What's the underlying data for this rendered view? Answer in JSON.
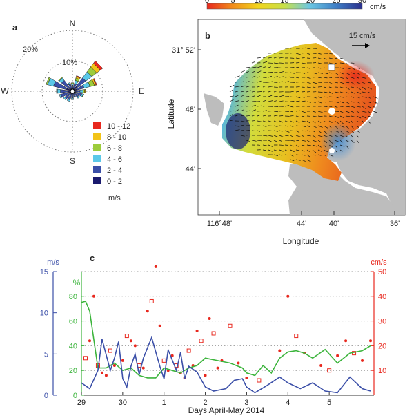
{
  "panels": {
    "a": {
      "label": "a",
      "compass": {
        "n": "N",
        "e": "E",
        "s": "S",
        "w": "W"
      },
      "ring_labels": [
        "10%",
        "20%"
      ],
      "legend_unit": "m/s",
      "colors": [
        "#1a1a6e",
        "#3a4fa8",
        "#5bc8e8",
        "#9ccc3c",
        "#f2c318",
        "#e8281e"
      ]
    },
    "b": {
      "label": "b",
      "colorbar_unit": "cm/s",
      "colorbar_ticks": [
        "0",
        "5",
        "10",
        "15",
        "20",
        "25",
        "30"
      ],
      "colorbar_stops": [
        "#e8281e",
        "#f28a1a",
        "#f2d51c",
        "#c7e04a",
        "#6cc7e3",
        "#3e7fc7",
        "#2a2f8c"
      ],
      "scale_label": "15 cm/s",
      "xlabel": "Longitude",
      "ylabel": "Latitude",
      "xticks": [
        "116°48'",
        "44'",
        "40'",
        "36'"
      ],
      "yticks": [
        "31° 52'",
        "48'",
        "44'"
      ]
    },
    "c": {
      "label": "c",
      "xlabel": "Days April-May 2014",
      "left_unit_speed": "m/s",
      "left_unit_pct": "%",
      "right_unit": "cm/s",
      "colors": {
        "blue": "#3b4fa8",
        "green": "#3cb43c",
        "red": "#e8281e"
      }
    }
  },
  "chart_data": [
    {
      "type": "rose",
      "title": "",
      "directions_deg": [
        0,
        22.5,
        45,
        67.5,
        90,
        112.5,
        135,
        157.5,
        180,
        202.5,
        225,
        247.5,
        270,
        292.5,
        315,
        337.5
      ],
      "legend": [
        "10 - 12",
        "8 - 10",
        "6 - 8",
        "4 - 6",
        "2 - 4",
        "0 - 2"
      ],
      "series": [
        {
          "name": "0 - 2",
          "values": [
            1.0,
            1.2,
            2.0,
            1.5,
            1.0,
            1.2,
            1.0,
            0.8,
            0.8,
            1.0,
            1.2,
            1.5,
            1.5,
            2.0,
            1.5,
            1.0
          ]
        },
        {
          "name": "2 - 4",
          "values": [
            1.0,
            1.5,
            3.5,
            2.5,
            1.5,
            2.0,
            1.5,
            1.0,
            1.5,
            2.0,
            2.0,
            2.5,
            2.5,
            4.5,
            3.0,
            1.5
          ]
        },
        {
          "name": "4 - 6",
          "values": [
            0.5,
            1.0,
            2.5,
            2.0,
            1.0,
            0.5,
            0.5,
            0.3,
            0.5,
            0.5,
            0.5,
            0.5,
            1.0,
            2.0,
            1.0,
            0.5
          ]
        },
        {
          "name": "6 - 8",
          "values": [
            0.3,
            0.8,
            2.0,
            1.5,
            0.5,
            0.2,
            0,
            0,
            0,
            0,
            0,
            0,
            0.3,
            0.5,
            0.3,
            0
          ]
        },
        {
          "name": "8 - 10",
          "values": [
            0,
            0.5,
            1.5,
            0.5,
            0.3,
            0,
            0,
            0,
            0,
            0,
            0,
            0,
            0,
            0,
            0,
            0
          ]
        },
        {
          "name": "10 - 12",
          "values": [
            0,
            0.3,
            1.0,
            0.3,
            0,
            0,
            0,
            0,
            0,
            0,
            0,
            0,
            0,
            0,
            0,
            0
          ]
        }
      ],
      "rings_percent": [
        10,
        20
      ]
    },
    {
      "type": "map",
      "title": "",
      "colorbar_range": [
        0,
        30
      ],
      "xticks": [
        "116°48'",
        "44'",
        "40'",
        "36'"
      ],
      "yticks": [
        "31° 52'",
        "48'",
        "44'"
      ]
    },
    {
      "type": "line",
      "title": "",
      "xlabel": "Days April-May 2014",
      "xticks": [
        "29",
        "30",
        "1",
        "2",
        "3",
        "4",
        "5"
      ],
      "xlim": [
        29,
        36
      ],
      "axes": {
        "left_speed": {
          "unit": "m/s",
          "ticks": [
            0,
            5,
            10,
            15
          ],
          "ylim": [
            0,
            15
          ]
        },
        "left_pct": {
          "unit": "%",
          "ticks": [
            0,
            20,
            40,
            60,
            80
          ],
          "ylim": [
            0,
            100
          ]
        },
        "right": {
          "unit": "cm/s",
          "ticks": [
            10,
            20,
            30,
            40,
            50
          ],
          "ylim": [
            0,
            50
          ]
        }
      },
      "series": [
        {
          "axis": "left_speed",
          "x": [
            29.0,
            29.2,
            29.4,
            29.5,
            29.7,
            29.8,
            29.9,
            30.0,
            30.1,
            30.2,
            30.3,
            30.4,
            30.5,
            30.7,
            30.9,
            31.0,
            31.1,
            31.3,
            31.4,
            31.5,
            31.6,
            31.8,
            32.0,
            32.2,
            32.5,
            32.7,
            32.9,
            33.0,
            33.2,
            33.5,
            33.8,
            34.0,
            34.3,
            34.6,
            34.9,
            35.2,
            35.5,
            35.8,
            36.0
          ],
          "y": [
            1.5,
            0.8,
            3.0,
            6.8,
            3.0,
            4.5,
            6.5,
            2.0,
            1.0,
            3.5,
            5.0,
            2.5,
            4.5,
            7.0,
            3.5,
            2.0,
            5.5,
            3.0,
            5.2,
            2.0,
            3.5,
            2.8,
            1.0,
            0.5,
            0.8,
            1.8,
            2.0,
            1.0,
            0.3,
            1.2,
            2.2,
            1.5,
            0.8,
            1.5,
            0.5,
            0.3,
            2.2,
            0.8,
            0.5
          ]
        },
        {
          "axis": "left_pct",
          "x": [
            29.0,
            29.1,
            29.2,
            29.4,
            29.6,
            29.8,
            30.0,
            30.2,
            30.4,
            30.6,
            30.8,
            31.0,
            31.2,
            31.4,
            31.6,
            31.8,
            32.0,
            32.3,
            32.6,
            32.9,
            33.0,
            33.2,
            33.4,
            33.6,
            33.8,
            34.0,
            34.2,
            34.4,
            34.6,
            34.9,
            35.2,
            35.5,
            35.8,
            36.0
          ],
          "y": [
            75,
            76,
            68,
            22,
            22,
            26,
            20,
            22,
            16,
            14,
            14,
            22,
            20,
            18,
            22,
            24,
            30,
            28,
            26,
            22,
            18,
            16,
            24,
            18,
            30,
            35,
            36,
            34,
            30,
            37,
            26,
            34,
            36,
            40
          ]
        }
      ],
      "scatter": {
        "axis": "right",
        "points": [
          [
            29.1,
            15
          ],
          [
            29.2,
            22
          ],
          [
            29.3,
            40
          ],
          [
            29.4,
            12
          ],
          [
            29.5,
            9
          ],
          [
            29.6,
            8
          ],
          [
            29.7,
            18
          ],
          [
            29.8,
            12
          ],
          [
            30.0,
            14
          ],
          [
            30.1,
            24
          ],
          [
            30.2,
            22
          ],
          [
            30.3,
            20
          ],
          [
            30.4,
            12
          ],
          [
            30.5,
            11
          ],
          [
            30.6,
            34
          ],
          [
            30.7,
            38
          ],
          [
            30.8,
            52
          ],
          [
            30.9,
            28
          ],
          [
            31.0,
            14
          ],
          [
            31.1,
            10
          ],
          [
            31.2,
            16
          ],
          [
            31.3,
            12
          ],
          [
            31.4,
            9
          ],
          [
            31.5,
            7
          ],
          [
            31.6,
            18
          ],
          [
            31.7,
            12
          ],
          [
            31.8,
            26
          ],
          [
            31.9,
            22
          ],
          [
            32.0,
            8
          ],
          [
            32.1,
            31
          ],
          [
            32.2,
            25
          ],
          [
            32.3,
            11
          ],
          [
            32.4,
            14
          ],
          [
            32.6,
            28
          ],
          [
            32.8,
            13
          ],
          [
            33.0,
            7
          ],
          [
            33.3,
            6
          ],
          [
            33.8,
            18
          ],
          [
            34.0,
            40
          ],
          [
            34.2,
            24
          ],
          [
            34.4,
            17
          ],
          [
            34.8,
            12
          ],
          [
            35.0,
            10
          ],
          [
            35.2,
            16
          ],
          [
            35.4,
            22
          ],
          [
            35.6,
            17
          ],
          [
            35.8,
            14
          ],
          [
            36.0,
            22
          ]
        ]
      }
    }
  ]
}
